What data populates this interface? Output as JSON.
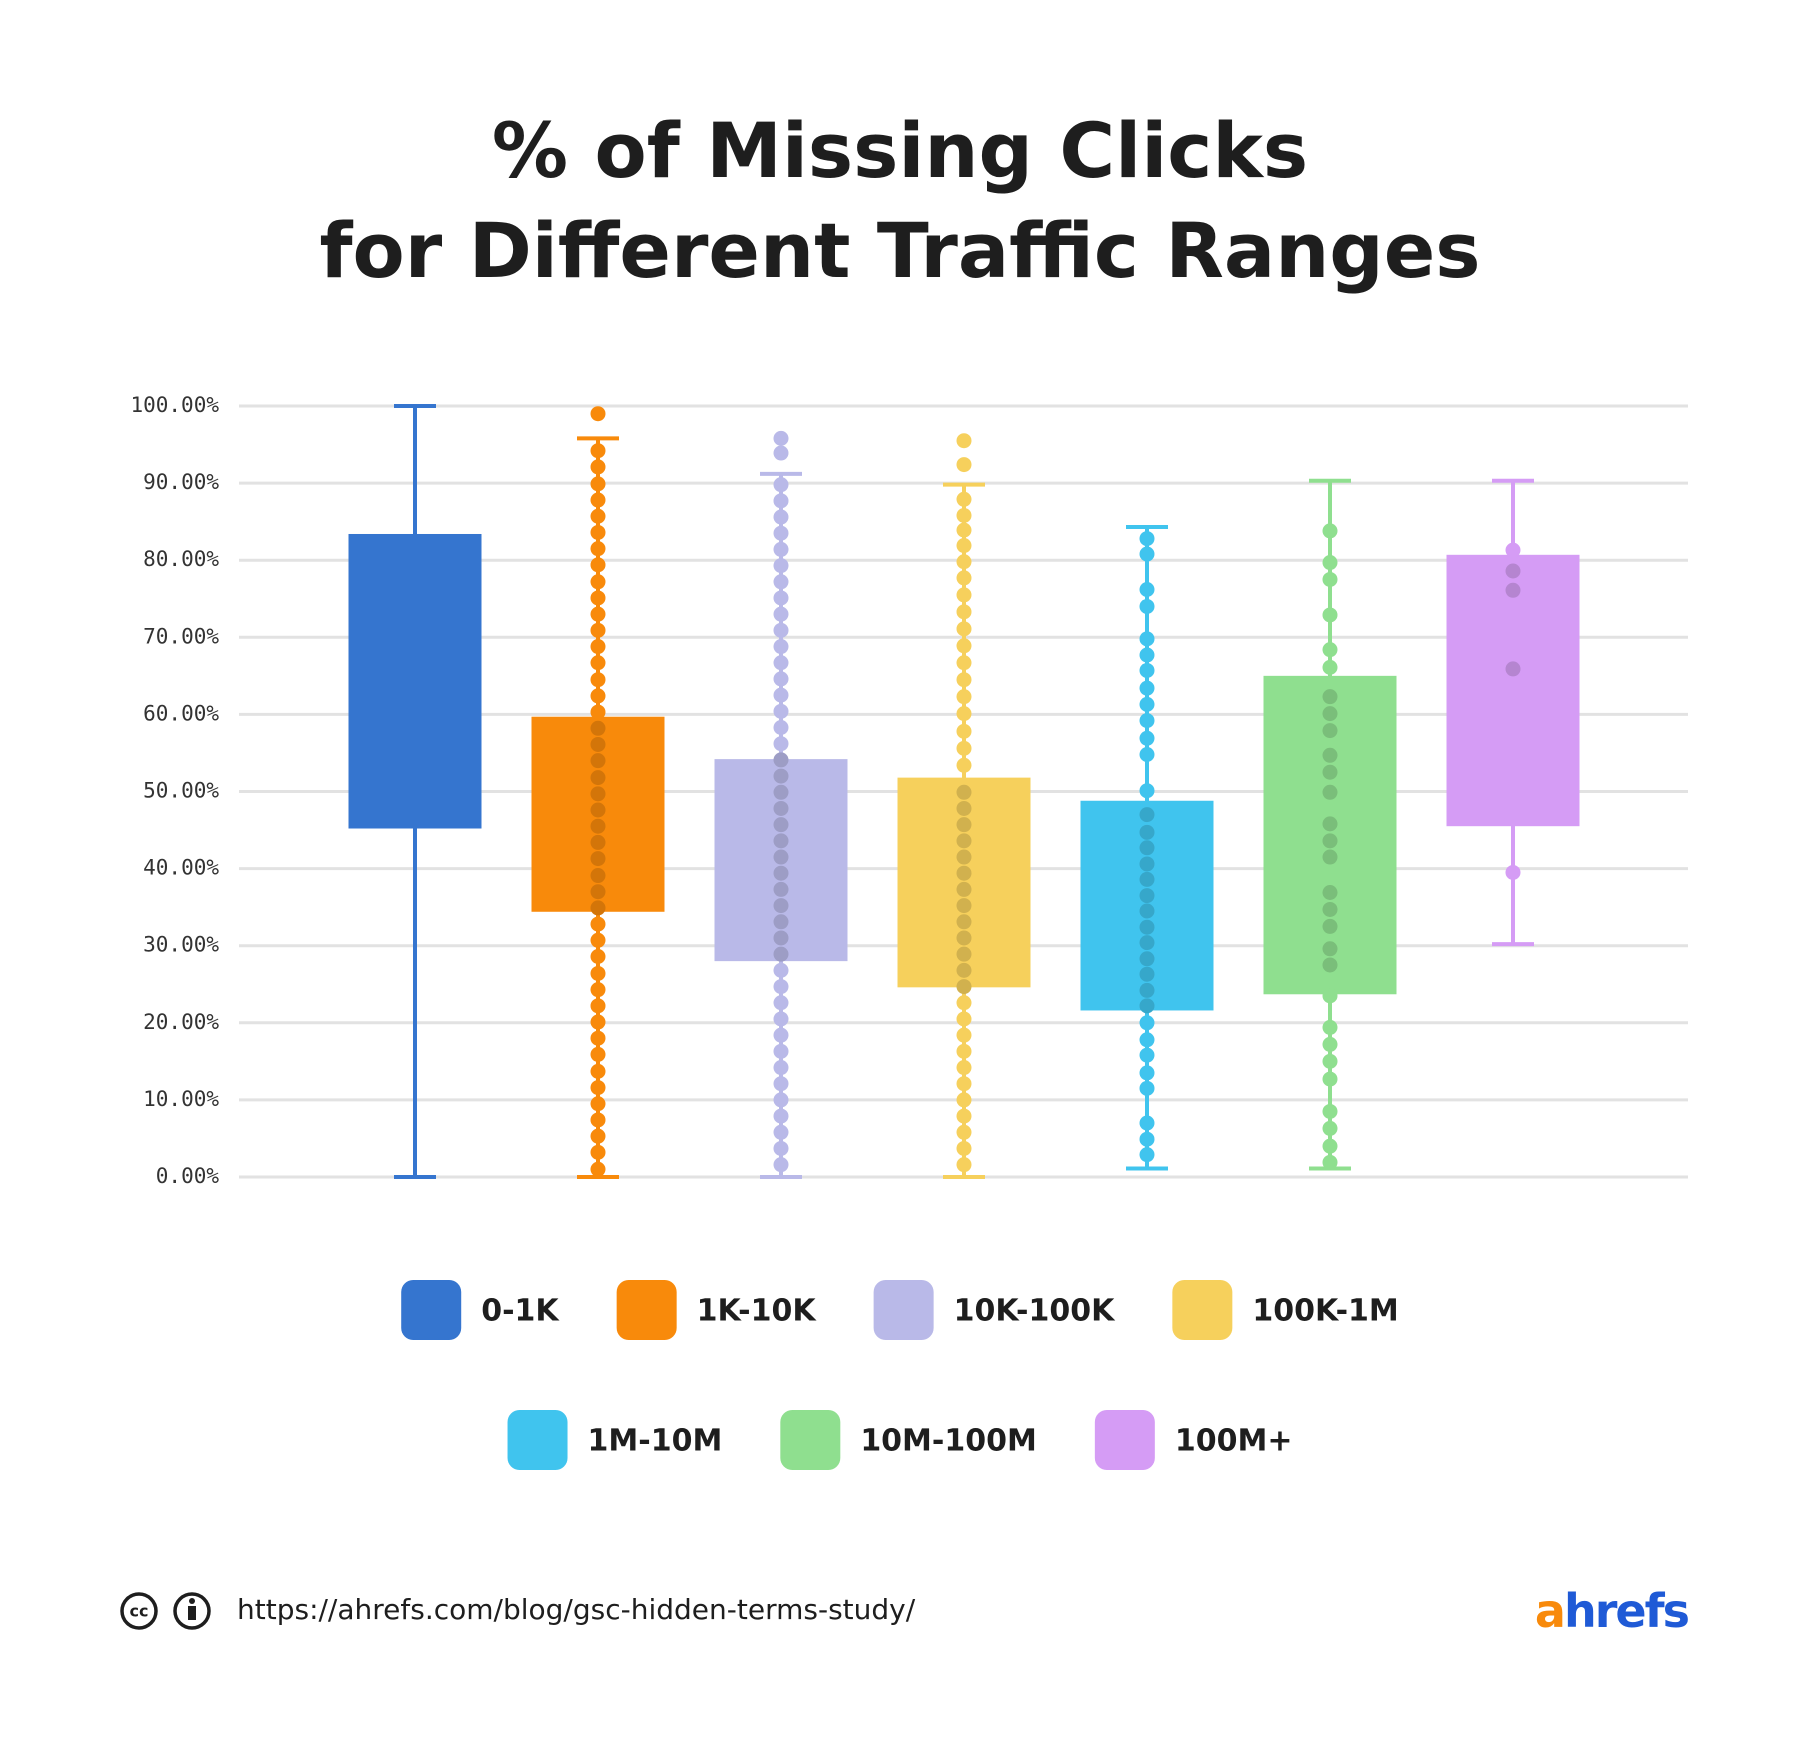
{
  "chart_data": {
    "type": "box",
    "title": [
      "% of Missing Clicks",
      "for Different Traffic Ranges"
    ],
    "ylim": [
      0,
      100
    ],
    "yticks": [
      {
        "value": 0,
        "label": "0.00%"
      },
      {
        "value": 10,
        "label": "10.00%"
      },
      {
        "value": 20,
        "label": "20.00%"
      },
      {
        "value": 30,
        "label": "30.00%"
      },
      {
        "value": 40,
        "label": "40.00%"
      },
      {
        "value": 50,
        "label": "50.00%"
      },
      {
        "value": 60,
        "label": "60.00%"
      },
      {
        "value": 70,
        "label": "70.00%"
      },
      {
        "value": 80,
        "label": "80.00%"
      },
      {
        "value": 90,
        "label": "90.00%"
      },
      {
        "value": 100,
        "label": "100.00%"
      }
    ],
    "grid": true,
    "series": [
      {
        "name": "0-1K",
        "color": "#3575cf",
        "whisker_low": 0,
        "q1": 45.2,
        "q3": 83.4,
        "whisker_high": 100,
        "points": []
      },
      {
        "name": "1K-10K",
        "color": "#f88a0b",
        "whisker_low": 0,
        "q1": 34.4,
        "q3": 59.7,
        "whisker_high": 95.8,
        "points": [
          1,
          3.2,
          5.3,
          7.4,
          9.5,
          11.6,
          13.7,
          15.9,
          18,
          20.1,
          22.2,
          24.3,
          26.4,
          28.6,
          30.7,
          32.8,
          34.9,
          37,
          39.1,
          41.3,
          43.4,
          45.5,
          47.6,
          49.7,
          51.8,
          54,
          56.1,
          58.2,
          60.3,
          62.4,
          64.5,
          66.7,
          68.8,
          70.9,
          73,
          75.1,
          77.2,
          79.4,
          81.5,
          83.6,
          85.7,
          87.8,
          89.9,
          92.1,
          94.2,
          99
        ]
      },
      {
        "name": "10K-100K",
        "color": "#b9b9e8",
        "whisker_low": 0,
        "q1": 28,
        "q3": 54.2,
        "whisker_high": 91.2,
        "points": [
          1.6,
          3.7,
          5.8,
          7.9,
          10,
          12.1,
          14.2,
          16.3,
          18.4,
          20.5,
          22.6,
          24.7,
          26.8,
          28.9,
          31,
          33.1,
          35.2,
          37.3,
          39.4,
          41.5,
          43.6,
          45.7,
          47.8,
          49.9,
          52,
          54.1,
          56.2,
          58.3,
          60.4,
          62.5,
          64.6,
          66.7,
          68.8,
          70.9,
          73,
          75.1,
          77.2,
          79.3,
          81.4,
          83.5,
          85.6,
          87.7,
          89.8,
          93.9,
          95.8
        ]
      },
      {
        "name": "100K-1M",
        "color": "#f6d05c",
        "whisker_low": 0,
        "q1": 24.6,
        "q3": 51.8,
        "whisker_high": 89.8,
        "points": [
          1.6,
          3.7,
          5.8,
          7.9,
          10,
          12.1,
          14.2,
          16.3,
          18.4,
          20.5,
          22.6,
          24.7,
          26.8,
          28.9,
          31,
          33.1,
          35.2,
          37.3,
          39.4,
          41.5,
          43.6,
          45.7,
          47.8,
          49.9,
          53.4,
          55.6,
          57.8,
          60.1,
          62.3,
          64.5,
          66.7,
          68.9,
          71.1,
          73.3,
          75.5,
          77.7,
          79.8,
          81.9,
          83.9,
          85.8,
          87.9,
          92.4,
          95.5
        ]
      },
      {
        "name": "1M-10M",
        "color": "#40c4ee",
        "whisker_low": 1.1,
        "q1": 21.6,
        "q3": 48.8,
        "whisker_high": 84.3,
        "points": [
          2.9,
          4.9,
          7,
          11.5,
          13.5,
          15.8,
          17.8,
          20,
          22.2,
          24.2,
          26.3,
          28.3,
          30.4,
          32.4,
          34.5,
          36.5,
          38.6,
          40.6,
          42.7,
          44.7,
          47,
          50.1,
          54.8,
          56.9,
          59.2,
          61.3,
          63.4,
          65.7,
          67.7,
          69.8,
          74,
          76.2,
          80.8,
          82.8
        ]
      },
      {
        "name": "10M-100M",
        "color": "#8fdf8f",
        "whisker_low": 1.1,
        "q1": 23.7,
        "q3": 65,
        "whisker_high": 90.3,
        "points": [
          1.9,
          4,
          6.3,
          8.5,
          12.7,
          15,
          17.2,
          19.4,
          23.5,
          27.5,
          29.6,
          32.5,
          34.7,
          36.9,
          41.5,
          43.6,
          45.8,
          49.9,
          52.5,
          54.7,
          57.9,
          60.1,
          62.3,
          66.1,
          68.4,
          72.9,
          77.5,
          79.7,
          83.8
        ]
      },
      {
        "name": "100M+",
        "color": "#d59cf5",
        "whisker_low": 30.2,
        "q1": 45.5,
        "q3": 80.7,
        "whisker_high": 90.3,
        "points": [
          39.5,
          65.9,
          76.1,
          78.6,
          81.3
        ]
      }
    ]
  },
  "footer": {
    "url": "https://ahrefs.com/blog/gsc-hidden-terms-study/",
    "logo": "ahrefs"
  }
}
